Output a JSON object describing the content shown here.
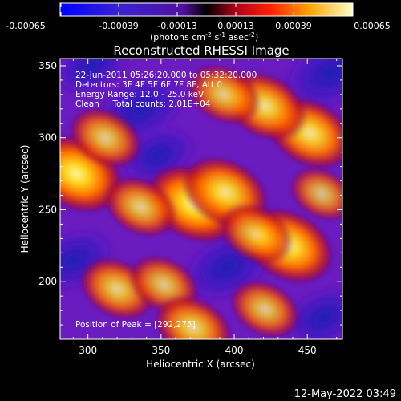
{
  "colorbar": {
    "tick_labels": [
      "-0.00065",
      "-0.00039",
      "-0.00013",
      "0.00013",
      "0.00039",
      "0.00065"
    ],
    "unit_main": "(photons cm",
    "unit_exp1": "-2",
    "unit_mid": " s",
    "unit_exp2": "-1",
    "unit_end": " asec",
    "unit_exp3": "-2",
    "unit_close": ")"
  },
  "chart_data": {
    "type": "heatmap",
    "title": "Reconstructed RHESSI Image",
    "xlabel": "Heliocentric X (arcsec)",
    "ylabel": "Heliocentric Y (arcsec)",
    "xlim": [
      281,
      474
    ],
    "ylim": [
      160,
      355
    ],
    "x_ticks": [
      300,
      350,
      400,
      450
    ],
    "y_ticks": [
      200,
      250,
      300,
      350
    ],
    "colorbar_range": [
      -0.00065,
      0.00065
    ],
    "annotations": [
      "22-Jun-2011 05:26:20.000 to 05:32:20.000",
      "Detectors: 3F 4F 5F 6F 7F 8F, Att 0",
      "Energy Range: 12.0 - 25.0 keV",
      "Clean     Total counts: 2.01E+04"
    ],
    "peak_label": "Position of Peak = [292,275]",
    "hot_spots": [
      {
        "x": 292,
        "y": 275,
        "intensity": 1.0
      },
      {
        "x": 372,
        "y": 254,
        "intensity": 1.0
      },
      {
        "x": 394,
        "y": 262,
        "intensity": 0.85
      },
      {
        "x": 437,
        "y": 225,
        "intensity": 0.95
      },
      {
        "x": 415,
        "y": 233,
        "intensity": 0.6
      },
      {
        "x": 452,
        "y": 303,
        "intensity": 0.85
      },
      {
        "x": 421,
        "y": 322,
        "intensity": 0.8
      },
      {
        "x": 393,
        "y": 330,
        "intensity": 0.6
      },
      {
        "x": 312,
        "y": 300,
        "intensity": 0.6
      },
      {
        "x": 336,
        "y": 252,
        "intensity": 0.6
      },
      {
        "x": 320,
        "y": 195,
        "intensity": 0.65
      },
      {
        "x": 352,
        "y": 198,
        "intensity": 0.55
      },
      {
        "x": 372,
        "y": 168,
        "intensity": 0.7
      },
      {
        "x": 421,
        "y": 181,
        "intensity": 0.55
      },
      {
        "x": 460,
        "y": 261,
        "intensity": 0.45
      }
    ],
    "cold_spots": [
      {
        "x": 336,
        "y": 320,
        "intensity": 0.55
      },
      {
        "x": 290,
        "y": 215,
        "intensity": 0.45
      },
      {
        "x": 395,
        "y": 210,
        "intensity": 0.55
      },
      {
        "x": 466,
        "y": 345,
        "intensity": 0.65
      },
      {
        "x": 461,
        "y": 175,
        "intensity": 0.45
      },
      {
        "x": 348,
        "y": 288,
        "intensity": 0.35
      },
      {
        "x": 302,
        "y": 350,
        "intensity": 0.35
      }
    ]
  },
  "timestamp": "12-May-2022 03:49"
}
